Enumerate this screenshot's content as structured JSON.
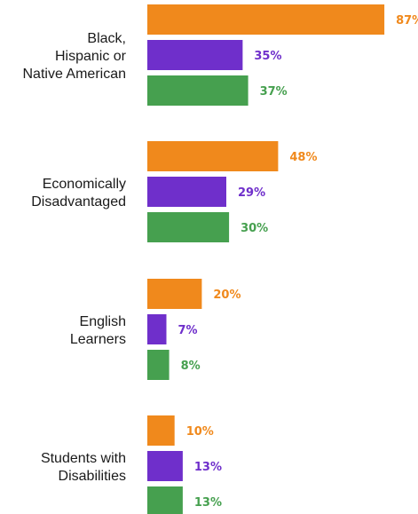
{
  "chart_data": {
    "type": "bar",
    "orientation": "horizontal",
    "title": "",
    "xlabel": "",
    "ylabel": "",
    "xlim": [
      0,
      100
    ],
    "grid": false,
    "legend": "none",
    "value_suffix": "%",
    "categories": [
      "Black, Hispanic or Native American",
      "Economically Disadvantaged",
      "English Learners",
      "Students with Disabilities"
    ],
    "category_lines": [
      [
        "Black,",
        "Hispanic or",
        "Native American"
      ],
      [
        "Economically",
        "Disadvantaged"
      ],
      [
        "English",
        "Learners"
      ],
      [
        "Students with",
        "Disabilities"
      ]
    ],
    "series": [
      {
        "color": "#f0891c",
        "values": [
          87,
          48,
          20,
          10
        ]
      },
      {
        "color": "#6f2fcb",
        "values": [
          35,
          29,
          7,
          13
        ]
      },
      {
        "color": "#46a04f",
        "values": [
          37,
          30,
          8,
          13
        ]
      }
    ]
  }
}
